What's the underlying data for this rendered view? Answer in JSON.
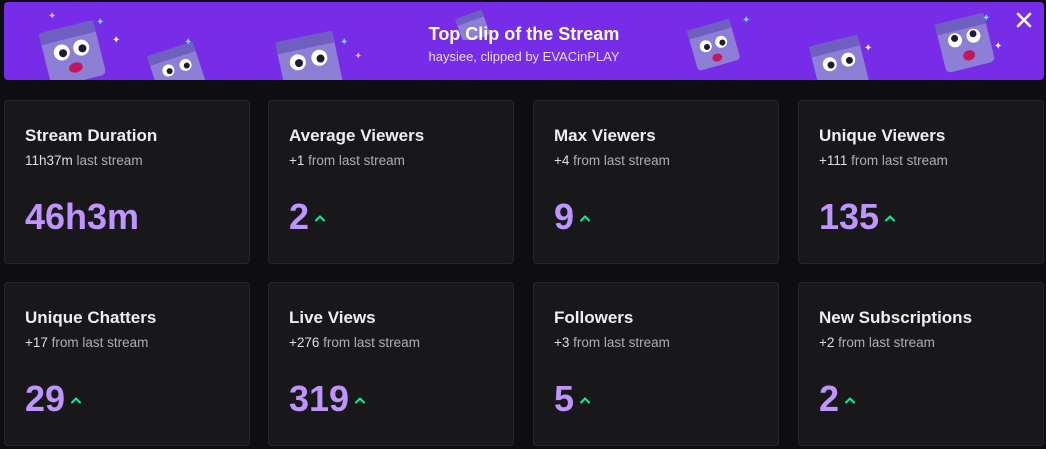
{
  "banner": {
    "title": "Top Clip of the Stream",
    "subtitle": "haysiee, clipped by EVACinPLAY",
    "close_icon": "close-icon",
    "background": "#772ce8",
    "decoration_icon": "mascot-icon"
  },
  "colors": {
    "value": "#bf94ff",
    "trend_up": "#00f593",
    "card_bg": "#18181b"
  },
  "stats": [
    {
      "title": "Stream Duration",
      "delta_value": "11h37m",
      "delta_text": " last stream",
      "value": "46h3m",
      "trend": ""
    },
    {
      "title": "Average Viewers",
      "delta_value": "+1",
      "delta_text": " from last stream",
      "value": "2",
      "trend": "up"
    },
    {
      "title": "Max Viewers",
      "delta_value": "+4",
      "delta_text": " from last stream",
      "value": "9",
      "trend": "up"
    },
    {
      "title": "Unique Viewers",
      "delta_value": "+111",
      "delta_text": " from last stream",
      "value": "135",
      "trend": "up"
    },
    {
      "title": "Unique Chatters",
      "delta_value": "+17",
      "delta_text": " from last stream",
      "value": "29",
      "trend": "up"
    },
    {
      "title": "Live Views",
      "delta_value": "+276",
      "delta_text": " from last stream",
      "value": "319",
      "trend": "up"
    },
    {
      "title": "Followers",
      "delta_value": "+3",
      "delta_text": " from last stream",
      "value": "5",
      "trend": "up"
    },
    {
      "title": "New Subscriptions",
      "delta_value": "+2",
      "delta_text": " from last stream",
      "value": "2",
      "trend": "up"
    }
  ]
}
